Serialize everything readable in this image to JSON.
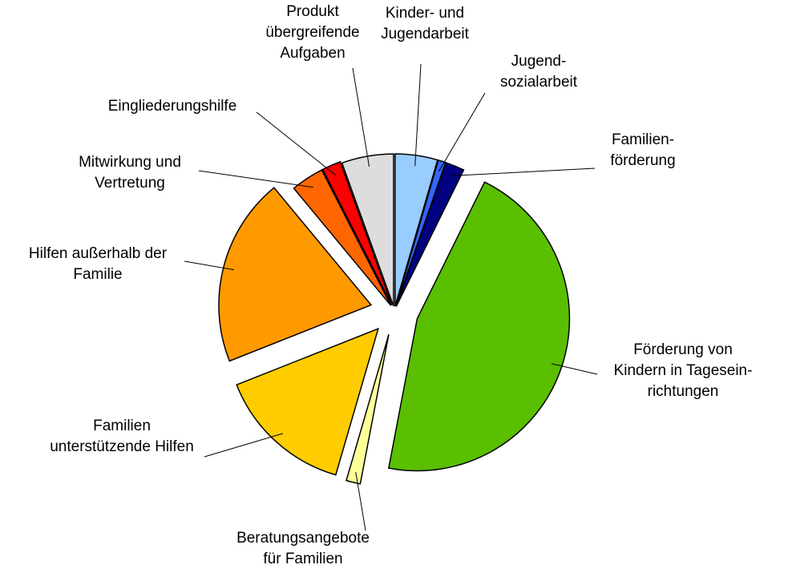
{
  "chart_data": {
    "type": "pie",
    "categories": [
      "Kinder- und\nJugendarbeit",
      "Jugend-\nsozialarbeit",
      "Familien-\nförderung",
      "Förderung von\nKindern in Tagesein-\nrichtungen",
      "Beratungsangebote\nfür Familien",
      "Familien\nunterstützende Hilfen",
      "Hilfen außerhalb der\nFamilie",
      "Mitwirkung und\nVertretung",
      "Eingliederungshilfe",
      "Produkt\nübergreifende\nAufgaben"
    ],
    "values": [
      4.5,
      0.8,
      2,
      45.7,
      1.5,
      14.5,
      20,
      3.5,
      2,
      5.5
    ],
    "colors": [
      "#99ccff",
      "#3366ff",
      "#000080",
      "#5abf00",
      "#ffff99",
      "#ffcc00",
      "#ff9900",
      "#ff6600",
      "#ff0000",
      "#dddddd"
    ]
  }
}
